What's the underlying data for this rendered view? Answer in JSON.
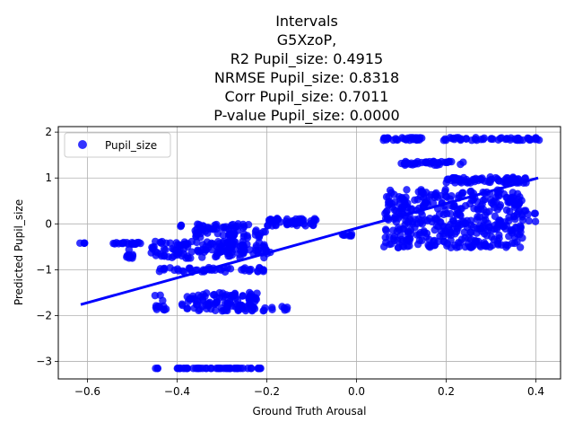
{
  "chart_data": {
    "type": "scatter",
    "title_lines": [
      "Intervals",
      "G5XzoP,",
      "R2 Pupil_size: 0.4915",
      "NRMSE Pupil_size: 0.8318",
      "Corr Pupil_size: 0.7011",
      "P-value Pupil_size: 0.0000"
    ],
    "xlabel": "Ground Truth Arousal",
    "ylabel": "Predicted Pupil_size",
    "xlim": [
      -0.665,
      0.455
    ],
    "ylim": [
      -3.38,
      2.12
    ],
    "xticks": [
      -0.6,
      -0.4,
      -0.2,
      0.0,
      0.2,
      0.4
    ],
    "xtick_labels": [
      "−0.6",
      "−0.4",
      "−0.2",
      "0.0",
      "0.2",
      "0.4"
    ],
    "yticks": [
      -3,
      -2,
      -1,
      0,
      1,
      2
    ],
    "ytick_labels": [
      "−3",
      "−2",
      "−1",
      "0",
      "1",
      "2"
    ],
    "grid": true,
    "legend_position": "top-left",
    "series": [
      {
        "name": "Pupil_size",
        "color": "#0000ff",
        "clusters": [
          {
            "x": [
              -0.62,
              -0.6
            ],
            "y": [
              -0.42,
              -0.42
            ],
            "n": 4
          },
          {
            "x": [
              -0.55,
              -0.48
            ],
            "y": [
              -0.45,
              -0.4
            ],
            "n": 20
          },
          {
            "x": [
              -0.52,
              -0.49
            ],
            "y": [
              -0.75,
              -0.55
            ],
            "n": 10
          },
          {
            "x": [
              -0.46,
              -0.2
            ],
            "y": [
              -0.75,
              -0.38
            ],
            "n": 140
          },
          {
            "x": [
              -0.45,
              -0.42
            ],
            "y": [
              -1.9,
              -1.5
            ],
            "n": 12
          },
          {
            "x": [
              -0.44,
              -0.39
            ],
            "y": [
              -1.05,
              -0.95
            ],
            "n": 8
          },
          {
            "x": [
              -0.4,
              -0.2
            ],
            "y": [
              -1.05,
              -0.95
            ],
            "n": 40
          },
          {
            "x": [
              -0.39,
              -0.22
            ],
            "y": [
              -1.9,
              -1.5
            ],
            "n": 110
          },
          {
            "x": [
              -0.4,
              -0.39
            ],
            "y": [
              -0.08,
              -0.02
            ],
            "n": 3
          },
          {
            "x": [
              -0.36,
              -0.2
            ],
            "y": [
              -0.3,
              0.02
            ],
            "n": 70
          },
          {
            "x": [
              -0.22,
              -0.15
            ],
            "y": [
              -1.9,
              -1.8
            ],
            "n": 10
          },
          {
            "x": [
              -0.22,
              -0.19
            ],
            "y": [
              -0.65,
              -0.55
            ],
            "n": 6
          },
          {
            "x": [
              -0.2,
              -0.09
            ],
            "y": [
              -0.05,
              0.12
            ],
            "n": 50
          },
          {
            "x": [
              -0.45,
              -0.44
            ],
            "y": [
              -3.15,
              -3.15
            ],
            "n": 3
          },
          {
            "x": [
              -0.4,
              -0.2
            ],
            "y": [
              -3.15,
              -3.15
            ],
            "n": 50
          },
          {
            "x": [
              -0.04,
              -0.01
            ],
            "y": [
              -0.28,
              -0.22
            ],
            "n": 8
          },
          {
            "x": [
              0.06,
              0.37
            ],
            "y": [
              -0.52,
              0.75
            ],
            "n": 420
          },
          {
            "x": [
              0.2,
              0.38
            ],
            "y": [
              0.88,
              1.02
            ],
            "n": 70
          },
          {
            "x": [
              0.1,
              0.24
            ],
            "y": [
              1.28,
              1.36
            ],
            "n": 40
          },
          {
            "x": [
              0.06,
              0.15
            ],
            "y": [
              1.82,
              1.88
            ],
            "n": 30
          },
          {
            "x": [
              0.18,
              0.41
            ],
            "y": [
              1.82,
              1.88
            ],
            "n": 50
          },
          {
            "x": [
              0.36,
              0.4
            ],
            "y": [
              0.05,
              0.35
            ],
            "n": 10
          }
        ]
      }
    ],
    "fit_line": {
      "x": [
        -0.615,
        0.405
      ],
      "y": [
        -1.76,
        1.0
      ],
      "color": "#0000ff"
    }
  }
}
